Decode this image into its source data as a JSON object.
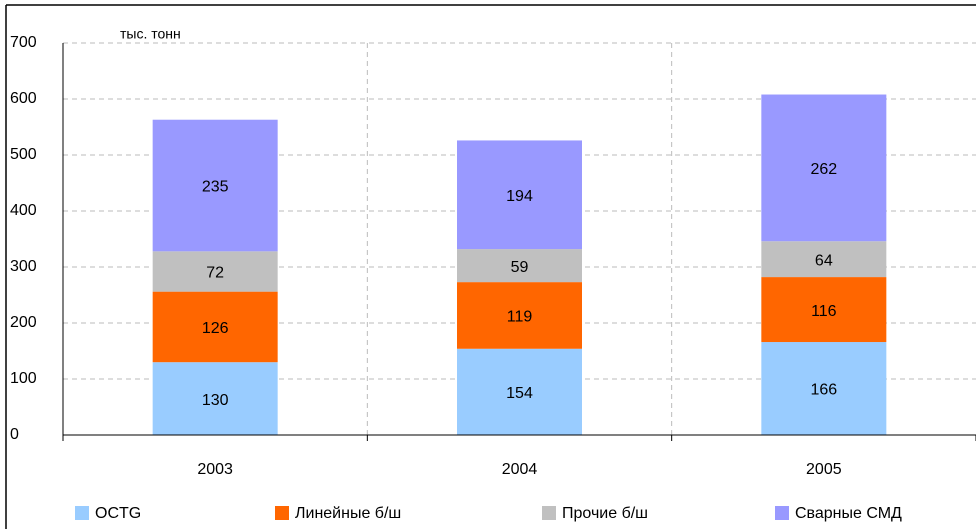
{
  "chart_data": {
    "type": "stacked_bar",
    "unit_label": "тыс. тонн",
    "categories": [
      "2003",
      "2004",
      "2005"
    ],
    "series": [
      {
        "name": "OCTG",
        "color": "#99ccff",
        "values": [
          130,
          154,
          166
        ]
      },
      {
        "name": "Линейные б/ш",
        "color": "#ff6600",
        "values": [
          126,
          119,
          116
        ]
      },
      {
        "name": "Прочие б/ш",
        "color": "#c0c0c0",
        "values": [
          72,
          59,
          64
        ]
      },
      {
        "name": "Сварные СМД",
        "color": "#9999ff",
        "values": [
          235,
          194,
          262
        ]
      }
    ],
    "ylim": [
      0,
      700
    ],
    "yticks": [
      0,
      100,
      200,
      300,
      400,
      500,
      600,
      700
    ],
    "grid": true,
    "legend": "bottom"
  }
}
